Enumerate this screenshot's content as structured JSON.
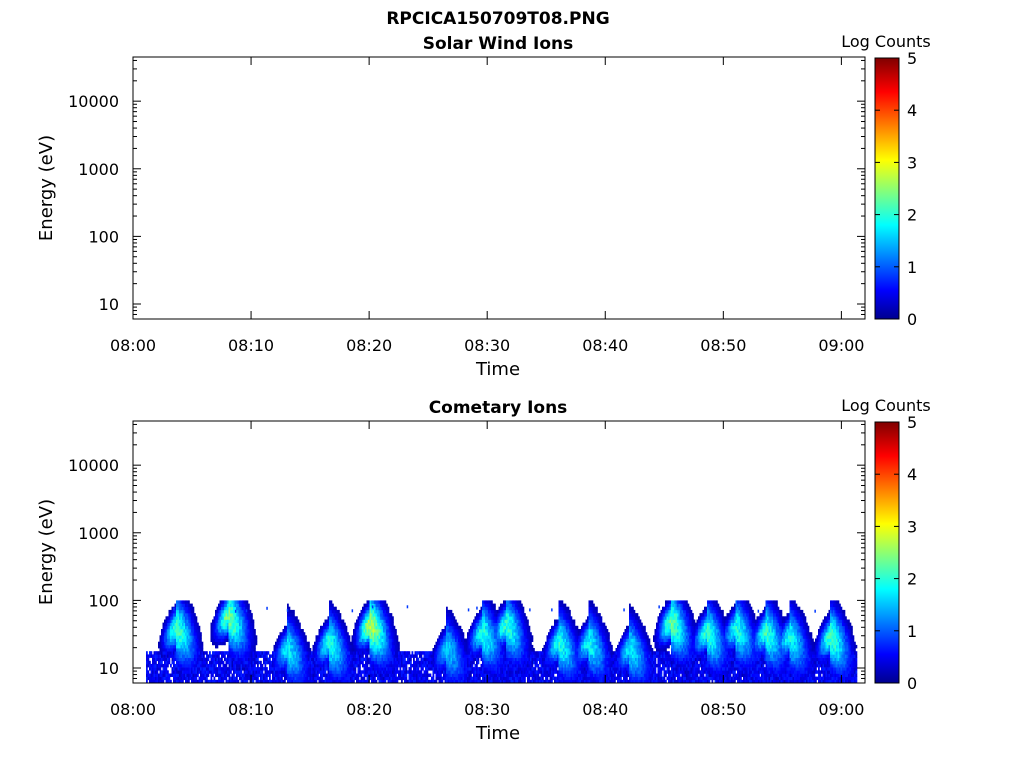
{
  "figure": {
    "title": "RPCICA150709T08.PNG"
  },
  "colorbar_scale": {
    "label": "Log Counts",
    "min": 0,
    "max": 5,
    "ticks": [
      "0",
      "1",
      "2",
      "3",
      "4",
      "5"
    ],
    "colormap": "jet"
  },
  "chart_data": [
    {
      "type": "heatmap",
      "title": "Solar Wind Ions",
      "xlabel": "Time",
      "ylabel": "Energy (eV)",
      "x_ticks": [
        "08:00",
        "08:10",
        "08:20",
        "08:30",
        "08:40",
        "08:50",
        "09:00"
      ],
      "xlim_minutes_after_0800": [
        0,
        62
      ],
      "y_scale": "log",
      "y_ticks": [
        "10",
        "100",
        "1000",
        "10000"
      ],
      "ylim_eV": [
        6,
        45000
      ],
      "colorbar_label": "Log Counts",
      "colorbar_range": [
        0,
        5
      ],
      "events": []
    },
    {
      "type": "heatmap",
      "title": "Cometary Ions",
      "xlabel": "Time",
      "ylabel": "Energy (eV)",
      "x_ticks": [
        "08:00",
        "08:10",
        "08:20",
        "08:30",
        "08:40",
        "08:50",
        "09:00"
      ],
      "xlim_minutes_after_0800": [
        0,
        62
      ],
      "y_scale": "log",
      "y_ticks": [
        "10",
        "100",
        "1000",
        "10000"
      ],
      "ylim_eV": [
        6,
        45000
      ],
      "colorbar_label": "Log Counts",
      "colorbar_range": [
        0,
        5
      ],
      "data_extent_minutes": [
        1.1,
        61.3
      ],
      "background_band_eV": [
        6,
        18
      ],
      "events": [
        {
          "t": 3.6,
          "peak_eV": 40,
          "intensity": 2.2
        },
        {
          "t": 8.0,
          "peak_eV": 60,
          "intensity": 2.4
        },
        {
          "t": 13.0,
          "peak_eV": 20,
          "intensity": 1.8
        },
        {
          "t": 16.5,
          "peak_eV": 25,
          "intensity": 2.0
        },
        {
          "t": 20.0,
          "peak_eV": 45,
          "intensity": 2.7
        },
        {
          "t": 26.5,
          "peak_eV": 20,
          "intensity": 1.6
        },
        {
          "t": 29.5,
          "peak_eV": 35,
          "intensity": 2.0
        },
        {
          "t": 31.5,
          "peak_eV": 45,
          "intensity": 2.1
        },
        {
          "t": 36.0,
          "peak_eV": 25,
          "intensity": 2.0
        },
        {
          "t": 38.5,
          "peak_eV": 25,
          "intensity": 1.9
        },
        {
          "t": 42.0,
          "peak_eV": 20,
          "intensity": 1.8
        },
        {
          "t": 45.5,
          "peak_eV": 50,
          "intensity": 2.3
        },
        {
          "t": 48.5,
          "peak_eV": 35,
          "intensity": 2.1
        },
        {
          "t": 51.0,
          "peak_eV": 40,
          "intensity": 2.0
        },
        {
          "t": 53.5,
          "peak_eV": 35,
          "intensity": 2.1
        },
        {
          "t": 55.5,
          "peak_eV": 30,
          "intensity": 1.9
        },
        {
          "t": 59.0,
          "peak_eV": 30,
          "intensity": 2.2
        }
      ]
    }
  ]
}
